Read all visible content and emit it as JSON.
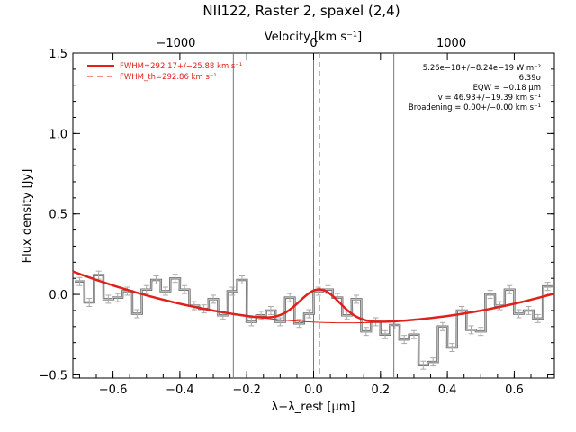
{
  "chart_data": {
    "type": "line",
    "title": "NII122, Raster 2, spaxel (2,4)",
    "xlabel": "λ−λ_rest [μm]",
    "ylabel": "Flux density [Jy]",
    "top_axis_label": "Velocity [km s⁻¹]",
    "xlim": [
      -0.72,
      0.72
    ],
    "ylim": [
      -0.52,
      1.5
    ],
    "x_ticks": [
      -0.6,
      -0.4,
      -0.2,
      0.0,
      0.2,
      0.4,
      0.6
    ],
    "x_tick_labels": [
      "−0.6",
      "−0.4",
      "−0.2",
      "0.0",
      "0.2",
      "0.4",
      "0.6"
    ],
    "y_ticks": [
      -0.5,
      0.0,
      0.5,
      1.0,
      1.5
    ],
    "y_tick_labels": [
      "−0.5",
      "0.0",
      "0.5",
      "1.0",
      "1.5"
    ],
    "top_ticks": [
      -0.412,
      0.0,
      0.412
    ],
    "top_tick_labels": [
      "−1000",
      "0",
      "1000"
    ],
    "vlines_solid": [
      -0.24,
      0.0,
      0.24
    ],
    "vlines_dashed": [
      0.018
    ],
    "legend": [
      {
        "label": "FWHM=292.17+/−25.88 km s⁻¹",
        "style": "solid",
        "color": "#e0201b"
      },
      {
        "label": "FWHM_th=292.86 km s⁻¹",
        "style": "dashed",
        "color": "#e0201b"
      }
    ],
    "annotations": [
      "5.26e−18+/−8.24e−19 W m⁻²",
      "6.39σ",
      "EQW = −0.18 μm",
      "v = 46.93+/−19.39 km s⁻¹",
      "Broadening = 0.00+/−0.00 km s⁻¹"
    ],
    "series": [
      {
        "style": "histogram",
        "color": "#6e6e6e",
        "bin_width": 0.0286,
        "x": [
          -0.7,
          -0.671,
          -0.643,
          -0.614,
          -0.586,
          -0.557,
          -0.528,
          -0.5,
          -0.471,
          -0.443,
          -0.414,
          -0.386,
          -0.357,
          -0.328,
          -0.3,
          -0.271,
          -0.243,
          -0.214,
          -0.186,
          -0.157,
          -0.128,
          -0.1,
          -0.071,
          -0.043,
          -0.014,
          0.014,
          0.043,
          0.071,
          0.1,
          0.128,
          0.157,
          0.186,
          0.214,
          0.243,
          0.271,
          0.3,
          0.328,
          0.357,
          0.386,
          0.414,
          0.443,
          0.471,
          0.5,
          0.528,
          0.557,
          0.586,
          0.614,
          0.643,
          0.671,
          0.7
        ],
        "y": [
          0.08,
          -0.05,
          0.12,
          -0.03,
          -0.02,
          0.02,
          -0.12,
          0.03,
          0.09,
          0.02,
          0.1,
          0.03,
          -0.07,
          -0.09,
          -0.03,
          -0.13,
          0.02,
          0.09,
          -0.17,
          -0.13,
          -0.1,
          -0.17,
          -0.02,
          -0.18,
          -0.12,
          0.02,
          0.03,
          -0.02,
          -0.13,
          -0.03,
          -0.23,
          -0.17,
          -0.25,
          -0.19,
          -0.28,
          -0.25,
          -0.44,
          -0.42,
          -0.2,
          -0.33,
          -0.1,
          -0.22,
          -0.23,
          0.0,
          -0.07,
          0.03,
          -0.12,
          -0.1,
          -0.15,
          0.05
        ],
        "yerr": 0.025
      },
      {
        "style": "fit",
        "color": "#e0201b",
        "continuum": {
          "a": -0.172,
          "b": -0.095,
          "c": 0.475
        },
        "gaussian": {
          "amp": 0.205,
          "center": 0.018,
          "sigma": 0.06
        }
      }
    ]
  }
}
